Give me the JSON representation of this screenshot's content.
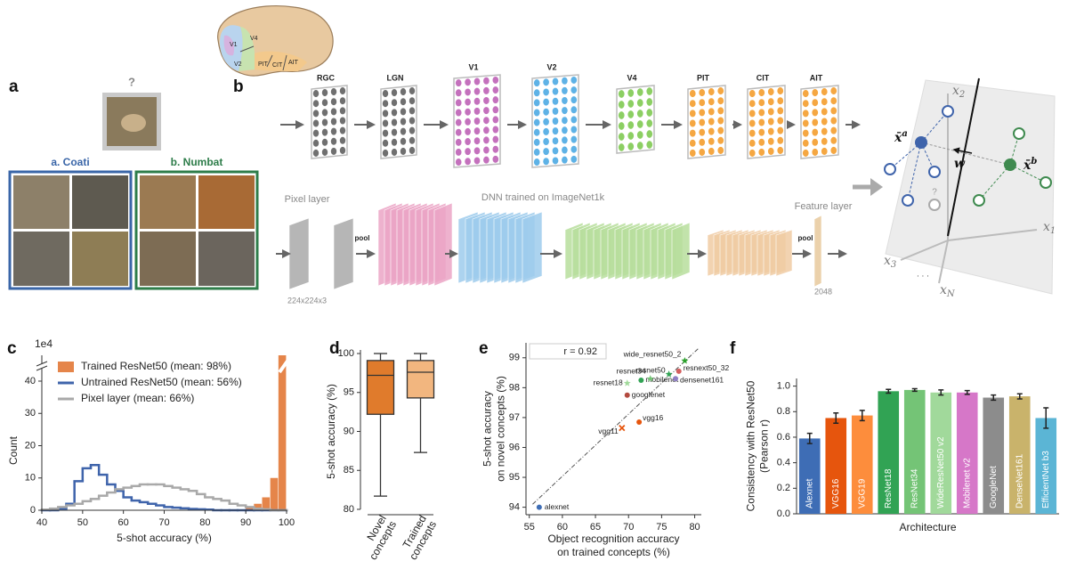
{
  "panel_labels": [
    "a",
    "b",
    "c",
    "d",
    "e",
    "f"
  ],
  "panel_a": {
    "query": "?",
    "class_a": "a. Coati",
    "class_b": "b. Numbat"
  },
  "panel_b": {
    "brain_areas": [
      "V1",
      "V4",
      "V2",
      "PIT",
      "CIT",
      "AIT"
    ],
    "stages": [
      "RGC",
      "LGN",
      "V1",
      "V2",
      "V4",
      "PIT",
      "CIT",
      "AIT"
    ],
    "pixel_layer": "Pixel layer",
    "dnn": "DNN trained on ImageNet1k",
    "feature_layer": "Feature layer",
    "pool": [
      "pool",
      "pool"
    ],
    "input_size": "224x224x3",
    "feature_size": "2048",
    "space": {
      "axes": [
        {
          "base": "x",
          "sub": "2"
        },
        {
          "base": "x",
          "sub": "1"
        },
        {
          "base": "x",
          "sub": "3"
        },
        {
          "base": "x",
          "sub": "N"
        }
      ],
      "ellipsis": ". . .",
      "weight": "w",
      "proto_a": {
        "base": "x̄",
        "sup": "a"
      },
      "proto_b": {
        "base": "x̄",
        "sup": "b"
      },
      "query": "?"
    }
  },
  "chart_data": [
    {
      "type": "histogram",
      "annotation": "1e4",
      "xlabel": "5-shot accuracy (%)",
      "ylabel": "Count",
      "bins": [
        40,
        42,
        44,
        46,
        48,
        50,
        52,
        54,
        56,
        58,
        60,
        62,
        64,
        66,
        68,
        70,
        72,
        74,
        76,
        78,
        80,
        82,
        84,
        86,
        88,
        90,
        92,
        94,
        96,
        98,
        100
      ],
      "xlim": [
        40,
        100
      ],
      "xticks": [
        40,
        50,
        60,
        70,
        80,
        90,
        100
      ],
      "ylim": [
        0,
        48
      ],
      "yticks": [
        0,
        10,
        20,
        30,
        40
      ],
      "legend": "upper left",
      "series": [
        {
          "name": "Trained ResNet50 (mean: 98%)",
          "color": "#e5854a",
          "style": "bar",
          "values": [
            0,
            0,
            0,
            0,
            0,
            0,
            0,
            0,
            0,
            0,
            0,
            0,
            0,
            0,
            0,
            0,
            0,
            0,
            0,
            0,
            0,
            0,
            0,
            0,
            0,
            1,
            2,
            4,
            10,
            48
          ]
        },
        {
          "name": "Untrained ResNet50 (mean: 56%)",
          "color": "#3f64ab",
          "style": "step",
          "values": [
            0,
            0,
            0.5,
            2,
            9,
            13,
            14,
            11,
            8,
            6,
            4,
            3,
            2.5,
            2,
            1.5,
            1,
            0.8,
            0.6,
            0.4,
            0.3,
            0.2,
            0,
            0,
            0,
            0,
            0,
            0,
            0,
            0,
            0
          ]
        },
        {
          "name": "Pixel layer (mean: 66%)",
          "color": "#a9a9a9",
          "style": "step",
          "values": [
            0.2,
            0.5,
            1,
            1.5,
            2,
            2.8,
            3.5,
            4.5,
            5.5,
            6.5,
            7,
            7.5,
            8,
            8,
            8,
            7.5,
            7,
            6.5,
            6,
            5,
            4,
            3.5,
            3,
            2,
            1.5,
            1,
            0.5,
            0.3,
            0,
            0
          ]
        }
      ]
    },
    {
      "type": "box",
      "ylabel": "5-shot accuracy (%)",
      "categories": [
        [
          "Novel",
          "concepts"
        ],
        [
          "Trained",
          "concepts"
        ]
      ],
      "colors": [
        "#e07b2c",
        "#f2b67f"
      ],
      "boxes": [
        {
          "low": 81.7,
          "q1": 92.2,
          "median": 97.2,
          "q3": 99.1,
          "high": 100
        },
        {
          "low": 87.3,
          "q1": 94.3,
          "median": 97.6,
          "q3": 99.1,
          "high": 100
        }
      ],
      "ylim": [
        80,
        100
      ],
      "yticks": [
        80,
        85,
        90,
        95,
        100
      ]
    },
    {
      "type": "scatter",
      "annotation": "r = 0.92",
      "xlabel": [
        "Object recognition accuracy",
        "on trained concepts (%)"
      ],
      "ylabel": [
        "5-shot accuracy",
        "on novel concepts (%)"
      ],
      "labels": [
        "alexnet",
        "vgg11",
        "vgg16",
        "googlenet",
        "resnet18",
        "mobilenet",
        "resnet34",
        "resnet50",
        "wide_resnet50_2",
        "resnext50_32",
        "densenet161"
      ],
      "x": [
        56.5,
        69.0,
        71.6,
        69.8,
        69.8,
        71.9,
        73.3,
        76.1,
        78.5,
        77.6,
        77.1
      ],
      "y": [
        94.0,
        96.65,
        96.85,
        97.75,
        98.15,
        98.25,
        98.3,
        98.45,
        98.9,
        98.55,
        98.3
      ],
      "colors": [
        "#3e6db5",
        "#e6550d",
        "#e6550d",
        "#b34a3f",
        "#a1d99b",
        "#31a354",
        "#74c476",
        "#31a354",
        "#2ca02c",
        "#d45f5f",
        "#8f7fc4"
      ],
      "markers": [
        "circle",
        "x",
        "circle",
        "circle",
        "star",
        "circle",
        "star",
        "star",
        "star",
        "circle",
        "circle"
      ],
      "trend": {
        "x": [
          55.5,
          80.5
        ],
        "y": [
          94.1,
          99.3
        ]
      },
      "xlim": [
        54.5,
        81
      ],
      "xticks": [
        55,
        60,
        65,
        70,
        75,
        80
      ],
      "ylim": [
        93.75,
        99.5
      ],
      "yticks": [
        94,
        95,
        96,
        97,
        98,
        99
      ]
    },
    {
      "type": "bar",
      "xlabel": "Architecture",
      "ylabel": [
        "Consistency with ResNet50",
        "(Pearson r)"
      ],
      "categories": [
        "Alexnet",
        "VGG16",
        "VGG19",
        "ResNet18",
        "ResNet34",
        "WideResNet50 v2",
        "Mobilenet v2",
        "GoogleNet",
        "DenseNet161",
        "EfficientNet b3"
      ],
      "values": [
        0.59,
        0.75,
        0.77,
        0.96,
        0.97,
        0.95,
        0.95,
        0.91,
        0.92,
        0.75
      ],
      "errors": [
        0.04,
        0.04,
        0.04,
        0.015,
        0.01,
        0.02,
        0.015,
        0.02,
        0.02,
        0.08
      ],
      "colors": [
        "#3e6db5",
        "#e6550d",
        "#fd8d3c",
        "#31a354",
        "#74c476",
        "#a1d99b",
        "#d677c8",
        "#8c8c8c",
        "#c9b36b",
        "#5bb5d5"
      ],
      "ylim": [
        0,
        1.06
      ],
      "yticks": [
        {
          "value": 0,
          "label": "0.0"
        },
        {
          "value": 0.2,
          "label": "0.2"
        },
        {
          "value": 0.4,
          "label": "0.4"
        },
        {
          "value": 0.6,
          "label": "0.6"
        },
        {
          "value": 0.8,
          "label": "0.8"
        },
        {
          "value": 1,
          "label": "1.0"
        }
      ]
    }
  ]
}
